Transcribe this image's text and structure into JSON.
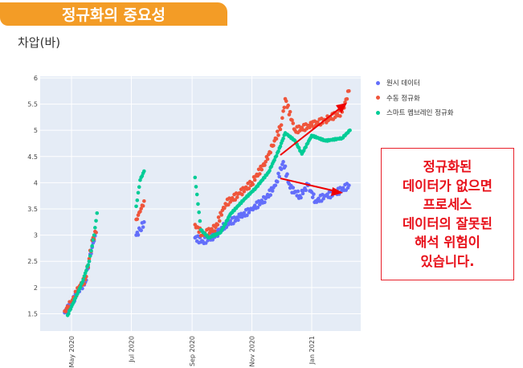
{
  "slide": {
    "title": "정규화의 중요성",
    "ylabel": "차압(바)"
  },
  "note": {
    "lines": [
      "정규화된",
      "데이터가 없으면",
      "프로세스",
      "데이터의 잘못된",
      "해석 위험이",
      "있습니다."
    ]
  },
  "chart_data": {
    "type": "scatter",
    "xlabel": "",
    "ylabel": "차압(바)",
    "xlim": [
      "2020-03-30",
      "2021-02-20"
    ],
    "ylim": [
      1.17,
      6.03
    ],
    "yticks": [
      1.5,
      2,
      2.5,
      3,
      3.5,
      4,
      4.5,
      5,
      5.5,
      6
    ],
    "ytick_labels": [
      "1.5",
      "2",
      "2.5",
      "3",
      "3.5",
      "4",
      "4.5",
      "5",
      "5.5",
      "6"
    ],
    "xticks": [
      "2020-05-01",
      "2020-07-01",
      "2020-09-01",
      "2020-11-01",
      "2021-01-01"
    ],
    "xtick_labels": [
      "May 2020",
      "Jul 2020",
      "Sep 2020",
      "Nov 2020",
      "Jan 2021"
    ],
    "grid": true,
    "legend_position": "right",
    "series": [
      {
        "name": "원시 데이터",
        "color": "#636EFA",
        "segments": [
          [
            [
              "2020-04-24",
              1.52
            ],
            [
              "2020-05-01",
              1.7
            ],
            [
              "2020-05-10",
              2.0
            ],
            [
              "2020-05-15",
              2.1
            ],
            [
              "2020-05-19",
              2.5
            ],
            [
              "2020-05-23",
              2.85
            ],
            [
              "2020-05-26",
              3.05
            ]
          ],
          [
            [
              "2020-07-06",
              3.0
            ],
            [
              "2020-07-10",
              3.1
            ],
            [
              "2020-07-14",
              3.25
            ]
          ],
          [
            [
              "2020-09-04",
              2.95
            ],
            [
              "2020-09-12",
              2.88
            ],
            [
              "2020-09-25",
              3.0
            ],
            [
              "2020-10-05",
              3.2
            ],
            [
              "2020-10-20",
              3.35
            ],
            [
              "2020-11-01",
              3.5
            ],
            [
              "2020-11-15",
              3.7
            ],
            [
              "2020-11-25",
              3.95
            ],
            [
              "2020-12-03",
              4.4
            ],
            [
              "2020-12-10",
              3.9
            ],
            [
              "2020-12-20",
              3.75
            ],
            [
              "2020-12-28",
              3.95
            ],
            [
              "2021-01-05",
              3.65
            ],
            [
              "2021-01-15",
              3.75
            ],
            [
              "2021-01-25",
              3.8
            ],
            [
              "2021-02-08",
              3.95
            ]
          ]
        ]
      },
      {
        "name": "수동 정규화",
        "color": "#EF553B",
        "segments": [
          [
            [
              "2020-04-24",
              1.55
            ],
            [
              "2020-05-01",
              1.72
            ],
            [
              "2020-05-10",
              2.05
            ],
            [
              "2020-05-15",
              2.15
            ],
            [
              "2020-05-19",
              2.55
            ],
            [
              "2020-05-23",
              2.95
            ],
            [
              "2020-05-26",
              3.05
            ]
          ],
          [
            [
              "2020-07-06",
              3.3
            ],
            [
              "2020-07-10",
              3.45
            ],
            [
              "2020-07-14",
              3.65
            ]
          ],
          [
            [
              "2020-09-04",
              3.2
            ],
            [
              "2020-09-12",
              3.0
            ],
            [
              "2020-09-25",
              3.15
            ],
            [
              "2020-10-05",
              3.6
            ],
            [
              "2020-10-20",
              3.8
            ],
            [
              "2020-11-01",
              4.0
            ],
            [
              "2020-11-15",
              4.4
            ],
            [
              "2020-11-22",
              4.7
            ],
            [
              "2020-12-01",
              5.1
            ],
            [
              "2020-12-05",
              5.6
            ],
            [
              "2020-12-15",
              5.0
            ],
            [
              "2021-01-01",
              5.1
            ],
            [
              "2021-01-15",
              5.2
            ],
            [
              "2021-02-01",
              5.35
            ],
            [
              "2021-02-08",
              5.75
            ]
          ]
        ]
      },
      {
        "name": "스마트 멤브레인 정규화",
        "color": "#00CC96",
        "segments": [
          [
            [
              "2020-04-27",
              1.47
            ],
            [
              "2020-05-05",
              1.8
            ],
            [
              "2020-05-12",
              2.1
            ],
            [
              "2020-05-19",
              2.5
            ],
            [
              "2020-05-24",
              3.0
            ],
            [
              "2020-05-27",
              3.42
            ]
          ],
          [
            [
              "2020-07-06",
              3.55
            ],
            [
              "2020-07-10",
              4.05
            ],
            [
              "2020-07-14",
              4.22
            ]
          ],
          [
            [
              "2020-09-04",
              4.1
            ],
            [
              "2020-09-10",
              3.1
            ],
            [
              "2020-09-18",
              2.95
            ],
            [
              "2020-09-30",
              3.05
            ],
            [
              "2020-10-10",
              3.4
            ],
            [
              "2020-10-25",
              3.7
            ],
            [
              "2020-11-05",
              3.9
            ],
            [
              "2020-11-18",
              4.2
            ],
            [
              "2020-11-28",
              4.6
            ],
            [
              "2020-12-05",
              4.95
            ],
            [
              "2020-12-15",
              4.8
            ],
            [
              "2020-12-22",
              4.55
            ],
            [
              "2021-01-01",
              4.9
            ],
            [
              "2021-01-15",
              4.8
            ],
            [
              "2021-02-01",
              4.85
            ],
            [
              "2021-02-09",
              5.0
            ]
          ]
        ]
      }
    ]
  }
}
